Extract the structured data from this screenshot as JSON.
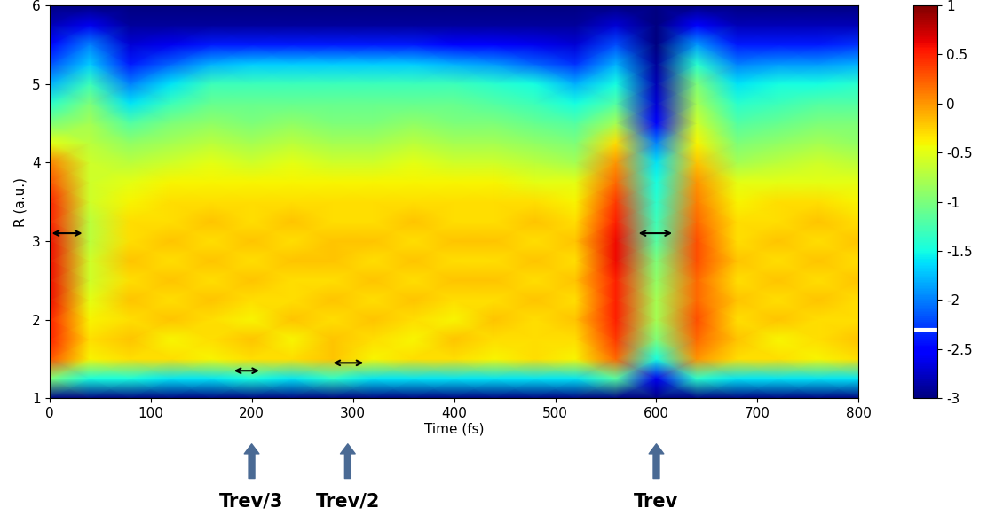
{
  "chart_data": {
    "type": "heatmap",
    "xlabel": "Time (fs)",
    "ylabel": "R (a.u.)",
    "x": [
      0,
      40,
      80,
      120,
      160,
      200,
      240,
      280,
      320,
      360,
      400,
      440,
      480,
      520,
      560,
      600,
      640,
      680,
      720,
      760,
      800
    ],
    "y": [
      1.0,
      1.25,
      1.5,
      1.75,
      2.0,
      2.25,
      2.5,
      2.75,
      3.0,
      3.25,
      3.5,
      3.75,
      4.0,
      4.25,
      4.5,
      4.75,
      5.0,
      5.25,
      5.5,
      5.75,
      6.0
    ],
    "cells": [
      [
        -3,
        -3,
        -3,
        -3,
        -3,
        -3,
        -3,
        -3,
        -3,
        -3,
        -3,
        -3,
        -3,
        -3,
        -3,
        -3,
        -3,
        -3,
        -3,
        -3,
        -3
      ],
      [
        -1.0,
        -1.5,
        -1.5,
        -1.6,
        -1.6,
        -1.5,
        -1.6,
        -1.4,
        -1.6,
        -1.6,
        -1.6,
        -1.6,
        -1.6,
        -1.6,
        -1.2,
        -2.6,
        -1.4,
        -1.6,
        -1.6,
        -1.6,
        -1.6
      ],
      [
        0.3,
        -0.4,
        -0.3,
        -0.3,
        -0.4,
        -0.3,
        -0.3,
        -0.2,
        -0.4,
        -0.3,
        -0.3,
        -0.4,
        -0.3,
        -0.4,
        0.2,
        -1.5,
        0.0,
        -0.3,
        -0.3,
        -0.4,
        -0.3
      ],
      [
        0.5,
        -0.3,
        -0.2,
        -0.4,
        -0.3,
        -0.2,
        -0.4,
        -0.2,
        -0.3,
        -0.4,
        -0.2,
        -0.3,
        -0.3,
        -0.3,
        0.4,
        -1.0,
        0.2,
        -0.2,
        -0.4,
        -0.3,
        -0.2
      ],
      [
        0.5,
        -0.4,
        -0.3,
        -0.2,
        -0.3,
        -0.4,
        -0.2,
        -0.3,
        -0.2,
        -0.3,
        -0.4,
        -0.2,
        -0.3,
        -0.2,
        0.5,
        -0.8,
        0.3,
        -0.3,
        -0.2,
        -0.3,
        -0.3
      ],
      [
        0.6,
        -0.5,
        -0.2,
        -0.3,
        -0.2,
        -0.3,
        -0.3,
        -0.2,
        -0.3,
        -0.2,
        -0.3,
        -0.3,
        -0.2,
        -0.3,
        0.5,
        -0.8,
        0.2,
        -0.2,
        -0.3,
        -0.2,
        -0.3
      ],
      [
        0.6,
        -0.6,
        -0.3,
        -0.2,
        -0.3,
        -0.2,
        -0.3,
        -0.3,
        -0.2,
        -0.3,
        -0.2,
        -0.2,
        -0.3,
        -0.2,
        0.5,
        -0.9,
        0.2,
        -0.3,
        -0.2,
        -0.3,
        -0.2
      ],
      [
        0.6,
        -0.6,
        -0.2,
        -0.3,
        -0.2,
        -0.3,
        -0.2,
        -0.2,
        -0.3,
        -0.2,
        -0.3,
        -0.3,
        -0.2,
        -0.3,
        0.6,
        -1.0,
        0.3,
        -0.2,
        -0.3,
        -0.2,
        -0.3
      ],
      [
        0.6,
        -0.7,
        -0.3,
        -0.2,
        -0.3,
        -0.2,
        -0.3,
        -0.2,
        -0.2,
        -0.3,
        -0.2,
        -0.2,
        -0.3,
        -0.2,
        0.6,
        -1.2,
        0.3,
        -0.3,
        -0.2,
        -0.3,
        -0.2
      ],
      [
        0.5,
        -0.7,
        -0.3,
        -0.3,
        -0.2,
        -0.3,
        -0.2,
        -0.3,
        -0.3,
        -0.2,
        -0.3,
        -0.3,
        -0.2,
        -0.3,
        0.5,
        -1.3,
        0.2,
        -0.3,
        -0.3,
        -0.2,
        -0.3
      ],
      [
        0.5,
        -0.6,
        -0.4,
        -0.3,
        -0.3,
        -0.3,
        -0.3,
        -0.3,
        -0.3,
        -0.3,
        -0.3,
        -0.3,
        -0.3,
        -0.4,
        0.4,
        -1.4,
        0.1,
        -0.4,
        -0.3,
        -0.3,
        -0.4
      ],
      [
        0.3,
        -0.6,
        -0.5,
        -0.4,
        -0.4,
        -0.4,
        -0.4,
        -0.4,
        -0.4,
        -0.4,
        -0.4,
        -0.4,
        -0.5,
        -0.5,
        0.2,
        -1.5,
        0.0,
        -0.5,
        -0.5,
        -0.5,
        -0.5
      ],
      [
        0.1,
        -0.6,
        -0.7,
        -0.6,
        -0.5,
        -0.6,
        -0.5,
        -0.6,
        -0.6,
        -0.5,
        -0.6,
        -0.6,
        -0.7,
        -0.8,
        0.0,
        -1.6,
        -0.2,
        -0.8,
        -0.7,
        -0.6,
        -0.7
      ],
      [
        -0.5,
        -0.7,
        -0.9,
        -0.8,
        -0.7,
        -0.8,
        -0.7,
        -0.8,
        -0.8,
        -0.7,
        -0.8,
        -0.8,
        -0.9,
        -1.0,
        -0.3,
        -2.0,
        -0.4,
        -1.0,
        -0.9,
        -0.8,
        -0.9
      ],
      [
        -1.0,
        -0.8,
        -1.2,
        -1.0,
        -0.9,
        -1.0,
        -0.9,
        -1.0,
        -1.0,
        -0.9,
        -1.0,
        -1.0,
        -1.1,
        -1.2,
        -0.8,
        -2.5,
        -0.6,
        -1.2,
        -1.1,
        -1.0,
        -1.0
      ],
      [
        -1.4,
        -1.0,
        -1.6,
        -1.3,
        -1.1,
        -1.1,
        -1.1,
        -1.1,
        -1.1,
        -1.1,
        -1.1,
        -1.2,
        -1.3,
        -1.5,
        -1.2,
        -2.7,
        -0.8,
        -1.4,
        -1.3,
        -1.2,
        -1.2
      ],
      [
        -1.8,
        -1.3,
        -2.0,
        -1.6,
        -1.3,
        -1.3,
        -1.3,
        -1.3,
        -1.3,
        -1.3,
        -1.3,
        -1.4,
        -1.5,
        -1.8,
        -1.5,
        -2.8,
        -1.0,
        -1.6,
        -1.5,
        -1.5,
        -1.4
      ],
      [
        -2.2,
        -1.7,
        -2.4,
        -2.1,
        -1.8,
        -1.7,
        -1.7,
        -1.7,
        -1.7,
        -1.7,
        -1.8,
        -1.9,
        -2.1,
        -2.3,
        -1.8,
        -2.9,
        -1.4,
        -2.0,
        -1.9,
        -1.9,
        -1.8
      ],
      [
        -2.5,
        -2.0,
        -2.7,
        -2.6,
        -2.4,
        -2.4,
        -2.4,
        -2.4,
        -2.4,
        -2.4,
        -2.5,
        -2.5,
        -2.6,
        -2.7,
        -2.2,
        -3,
        -1.9,
        -2.4,
        -2.4,
        -2.4,
        -2.3
      ],
      [
        -2.8,
        -2.6,
        -2.9,
        -2.9,
        -2.9,
        -2.9,
        -2.9,
        -2.9,
        -2.9,
        -2.9,
        -2.9,
        -2.9,
        -2.9,
        -2.9,
        -2.7,
        -3,
        -2.5,
        -2.8,
        -2.8,
        -2.8,
        -2.8
      ],
      [
        -3,
        -3,
        -3,
        -3,
        -3,
        -3,
        -3,
        -3,
        -3,
        -3,
        -3,
        -3,
        -3,
        -3,
        -3,
        -3,
        -3,
        -3,
        -3,
        -3,
        -3
      ]
    ],
    "xlim": [
      0,
      800
    ],
    "xticks": [
      0,
      100,
      200,
      300,
      400,
      500,
      600,
      700,
      800
    ],
    "ylim": [
      1,
      6
    ],
    "yticks": [
      1,
      2,
      3,
      4,
      5,
      6
    ],
    "colorbar_range": [
      -3,
      1
    ],
    "colorbar_ticks": [
      1,
      0.5,
      0,
      -0.5,
      -1,
      -1.5,
      -2,
      -2.5,
      -3
    ],
    "colorbar_mark": -2.3,
    "double_arrows": [
      {
        "x": [
          0,
          35
        ],
        "y": 3.1
      },
      {
        "x": [
          180,
          210
        ],
        "y": 1.35
      },
      {
        "x": [
          278,
          313
        ],
        "y": 1.45
      },
      {
        "x": [
          580,
          618
        ],
        "y": 3.1
      }
    ],
    "annotations": [
      {
        "text": "Trev/3",
        "x": 200
      },
      {
        "text": "Trev/2",
        "x": 295
      },
      {
        "text": "Trev",
        "x": 600
      }
    ]
  }
}
